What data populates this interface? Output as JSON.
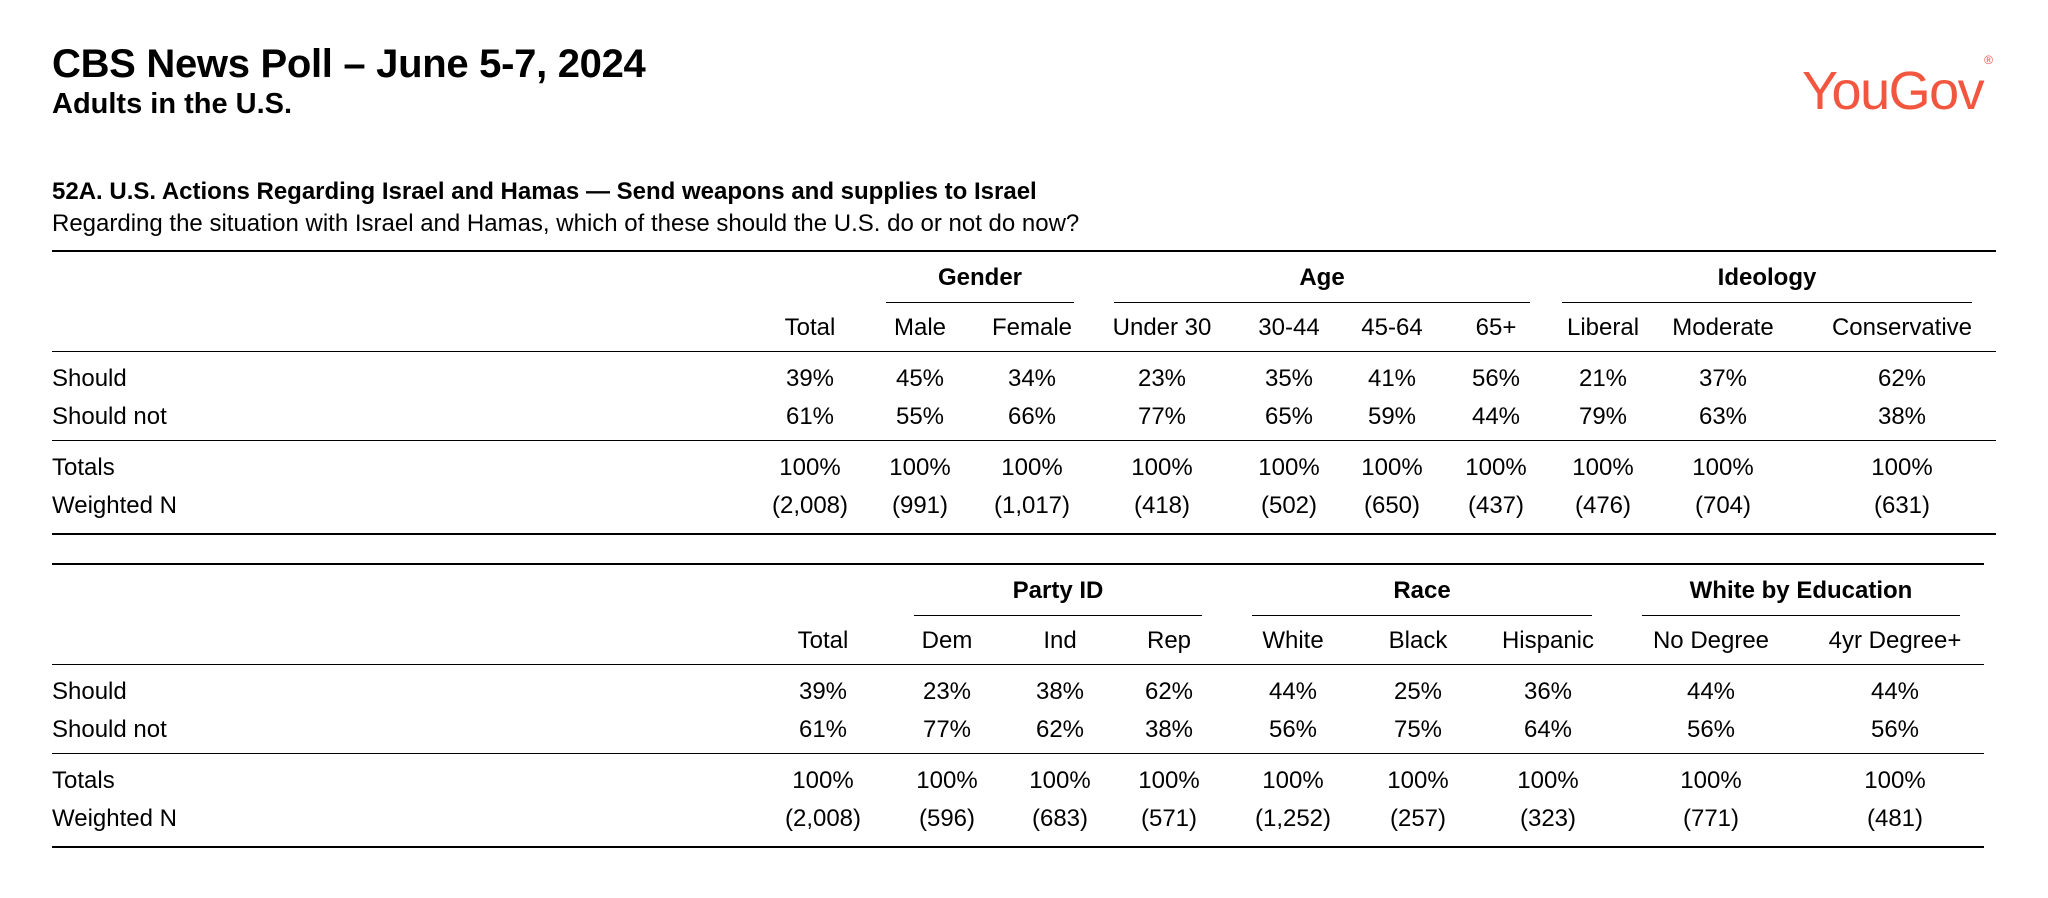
{
  "header": {
    "title": "CBS News Poll – June 5-7, 2024",
    "subtitle": "Adults in the U.S.",
    "logo_text": "YouGov",
    "logo_mark": "®",
    "logo_color": "#f2563f"
  },
  "question": {
    "title": "52A. U.S. Actions Regarding Israel and Hamas — Send weapons and supplies to Israel",
    "text": "Regarding the situation with Israel and Hamas, which of these should the U.S. do or not do now?"
  },
  "table1": {
    "groups": [
      "Gender",
      "Age",
      "Ideology"
    ],
    "columns": [
      "Total",
      "Male",
      "Female",
      "Under 30",
      "30-44",
      "45-64",
      "65+",
      "Liberal",
      "Moderate",
      "Conservative"
    ],
    "rows": [
      {
        "label": "Should",
        "values": [
          "39%",
          "45%",
          "34%",
          "23%",
          "35%",
          "41%",
          "56%",
          "21%",
          "37%",
          "62%"
        ]
      },
      {
        "label": "Should not",
        "values": [
          "61%",
          "55%",
          "66%",
          "77%",
          "65%",
          "59%",
          "44%",
          "79%",
          "63%",
          "38%"
        ]
      },
      {
        "label": "Totals",
        "values": [
          "100%",
          "100%",
          "100%",
          "100%",
          "100%",
          "100%",
          "100%",
          "100%",
          "100%",
          "100%"
        ]
      },
      {
        "label": "Weighted N",
        "values": [
          "(2,008)",
          "(991)",
          "(1,017)",
          "(418)",
          "(502)",
          "(650)",
          "(437)",
          "(476)",
          "(704)",
          "(631)"
        ]
      }
    ]
  },
  "table2": {
    "groups": [
      "Party ID",
      "Race",
      "White by Education"
    ],
    "columns": [
      "Total",
      "Dem",
      "Ind",
      "Rep",
      "White",
      "Black",
      "Hispanic",
      "No Degree",
      "4yr Degree+"
    ],
    "rows": [
      {
        "label": "Should",
        "values": [
          "39%",
          "23%",
          "38%",
          "62%",
          "44%",
          "25%",
          "36%",
          "44%",
          "44%"
        ]
      },
      {
        "label": "Should not",
        "values": [
          "61%",
          "77%",
          "62%",
          "38%",
          "56%",
          "75%",
          "64%",
          "56%",
          "56%"
        ]
      },
      {
        "label": "Totals",
        "values": [
          "100%",
          "100%",
          "100%",
          "100%",
          "100%",
          "100%",
          "100%",
          "100%",
          "100%"
        ]
      },
      {
        "label": "Weighted N",
        "values": [
          "(2,008)",
          "(596)",
          "(683)",
          "(571)",
          "(1,252)",
          "(257)",
          "(323)",
          "(771)",
          "(481)"
        ]
      }
    ]
  }
}
